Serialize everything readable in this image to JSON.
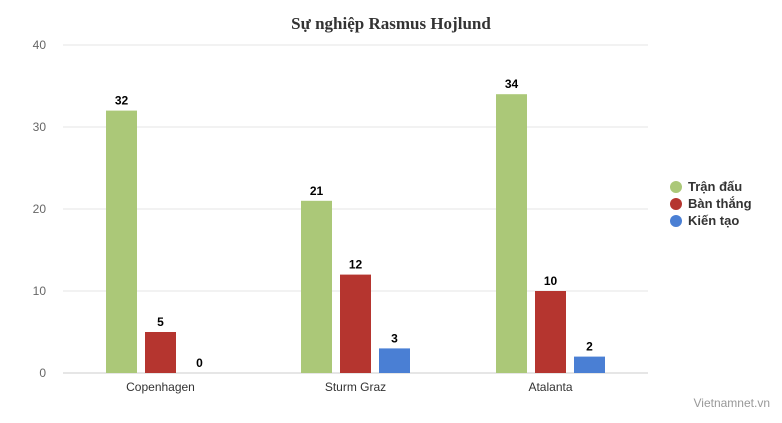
{
  "chart_data": {
    "type": "bar",
    "title": "Sự nghiệp Rasmus Hojlund",
    "xlabel": "",
    "ylabel": "",
    "categories": [
      "Copenhagen",
      "Sturm Graz",
      "Atalanta"
    ],
    "series": [
      {
        "name": "Trận đấu",
        "values": [
          32,
          21,
          34
        ],
        "color": "#abc878"
      },
      {
        "name": "Bàn thắng",
        "values": [
          5,
          12,
          10
        ],
        "color": "#b5352f"
      },
      {
        "name": "Kiến tạo",
        "values": [
          0,
          3,
          2
        ],
        "color": "#4a7fd4"
      }
    ],
    "ylim": [
      0,
      40
    ],
    "yticks": [
      "0",
      "10",
      "20",
      "30",
      "40"
    ],
    "grid": true,
    "legend_position": "right",
    "data_labels": true
  },
  "credit": "Vietnamnet.vn"
}
